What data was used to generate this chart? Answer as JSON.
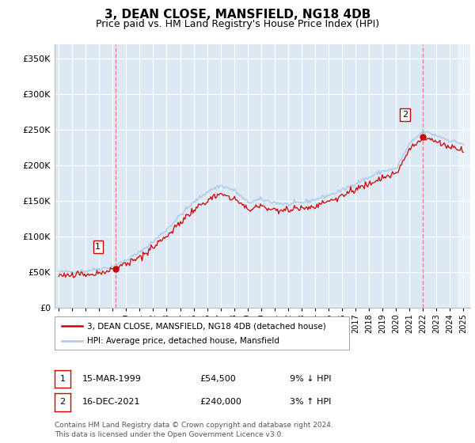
{
  "title": "3, DEAN CLOSE, MANSFIELD, NG18 4DB",
  "subtitle": "Price paid vs. HM Land Registry's House Price Index (HPI)",
  "title_fontsize": 11,
  "subtitle_fontsize": 9,
  "background_color": "#ffffff",
  "plot_bg_color": "#dce9f5",
  "grid_color": "#ffffff",
  "hpi_line_color": "#aac8e8",
  "property_line_color": "#cc0000",
  "dashed_line_color": "#e88080",
  "yticks": [
    0,
    50000,
    100000,
    150000,
    200000,
    250000,
    300000,
    350000
  ],
  "ytick_labels": [
    "£0",
    "£50K",
    "£100K",
    "£150K",
    "£200K",
    "£250K",
    "£300K",
    "£350K"
  ],
  "xlim_start": 1994.7,
  "xlim_end": 2025.5,
  "ylim_min": 0,
  "ylim_max": 370000,
  "point1": {
    "year": 1999.21,
    "value": 54500,
    "label": "1"
  },
  "point2": {
    "year": 2021.96,
    "value": 240000,
    "label": "2"
  },
  "annotation1": {
    "label": "1",
    "date": "15-MAR-1999",
    "price": "£54,500",
    "pct": "9% ↓ HPI"
  },
  "annotation2": {
    "label": "2",
    "date": "16-DEC-2021",
    "price": "£240,000",
    "pct": "3% ↑ HPI"
  },
  "legend_line1": "3, DEAN CLOSE, MANSFIELD, NG18 4DB (detached house)",
  "legend_line2": "HPI: Average price, detached house, Mansfield",
  "footer": "Contains HM Land Registry data © Crown copyright and database right 2024.\nThis data is licensed under the Open Government Licence v3.0.",
  "hatch_region_start": 2024.58
}
